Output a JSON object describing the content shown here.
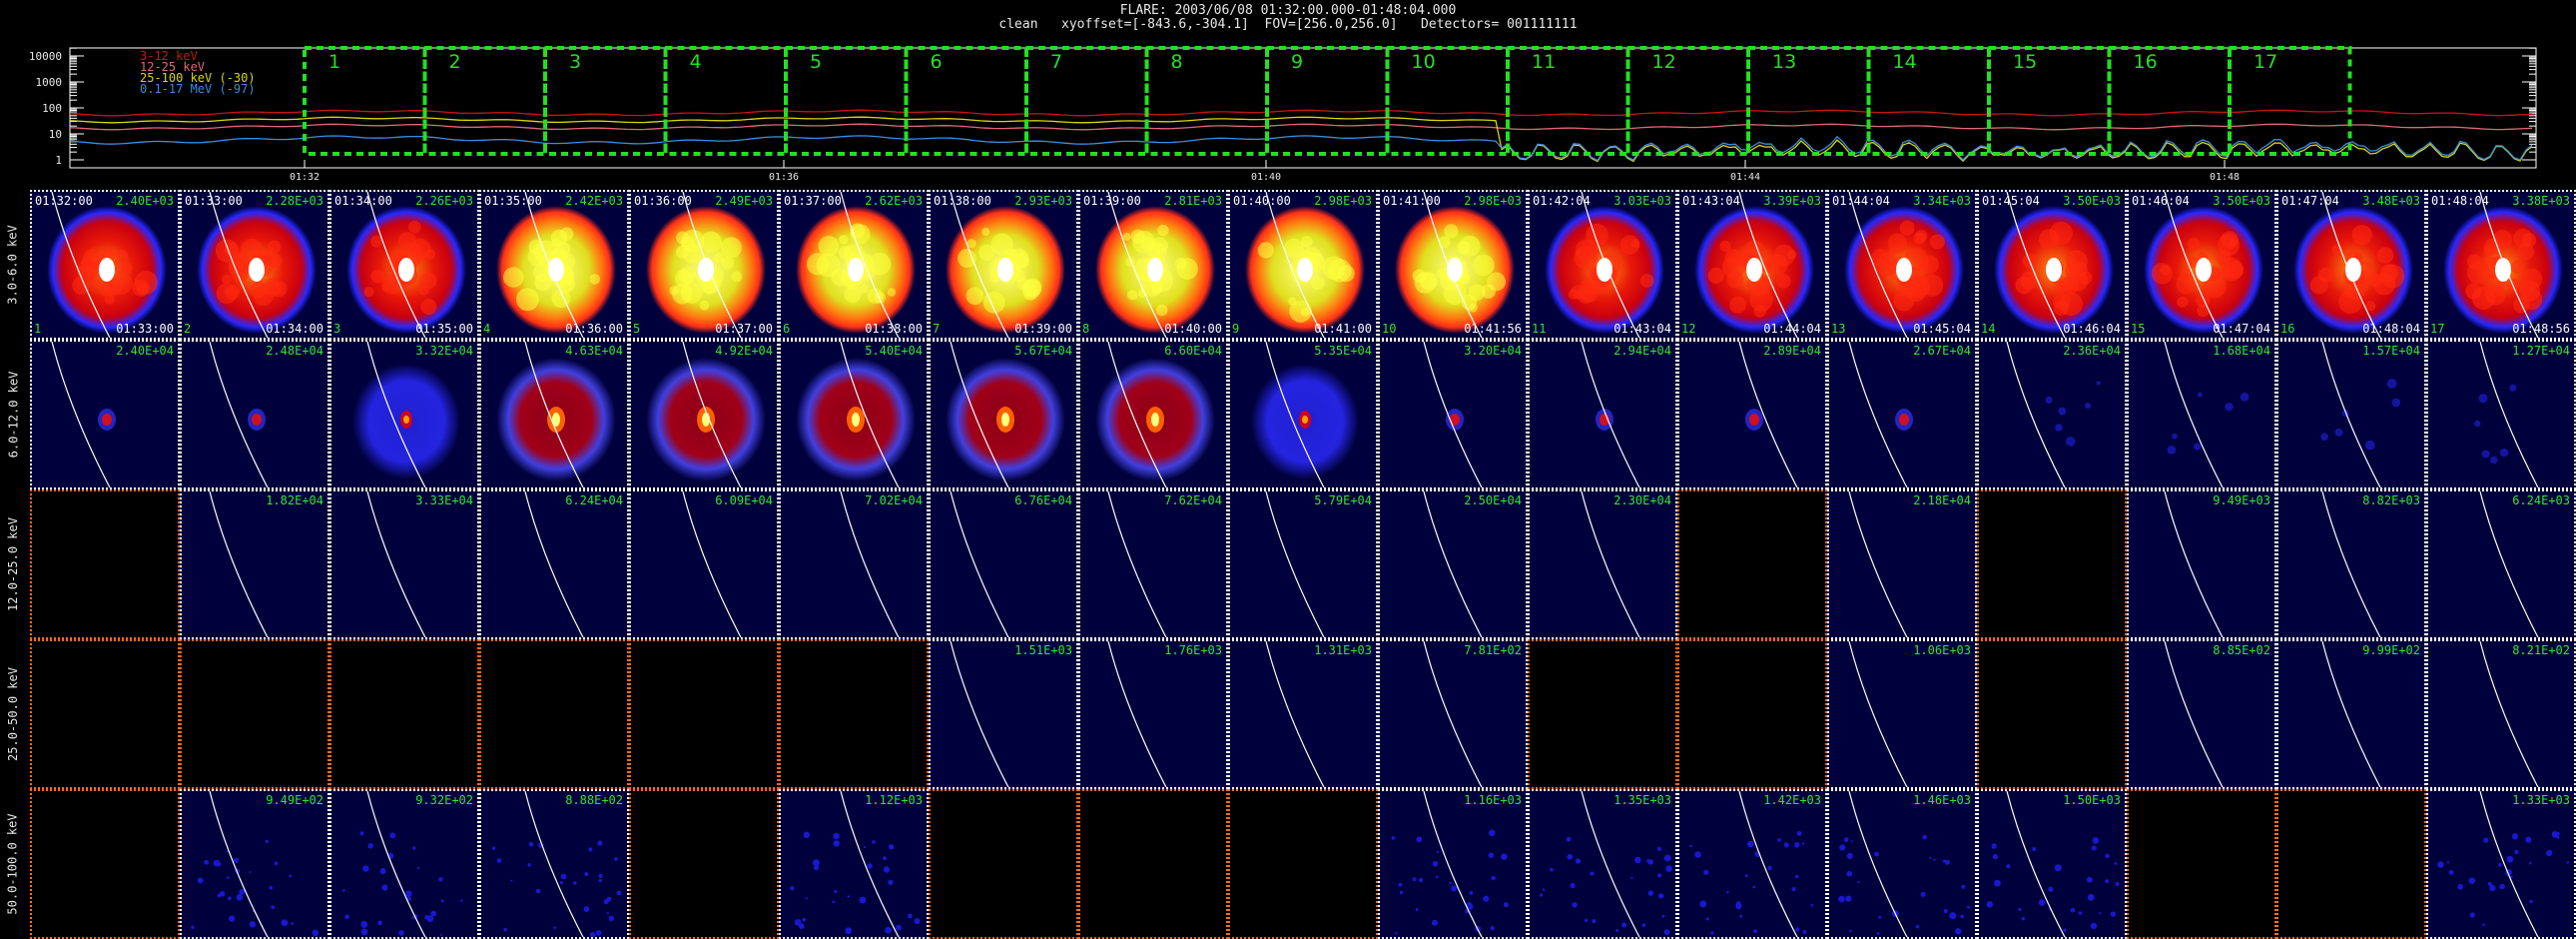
{
  "header": {
    "title": "FLARE: 2003/06/08 01:32:00.000-01:48:04.000",
    "subtitle": "clean   xyoffset=[-843.6,-304.1]  FOV=[256.0,256.0]   Detectors= 001111111"
  },
  "lightcurve": {
    "legend": [
      {
        "label": "3-12 keV",
        "color": "#c81414"
      },
      {
        "label": "12-25 keV",
        "color": "#e06878"
      },
      {
        "label": "25-100 keV (-30)",
        "color": "#d8d800"
      },
      {
        "label": "0.1-17 MeV (-97)",
        "color": "#3c8ce0"
      }
    ],
    "y_ticks": [
      "10000",
      "1000",
      "100",
      "10",
      "1"
    ],
    "x_ticks": [
      "01:32",
      "01:36",
      "01:40",
      "01:44",
      "01:48"
    ],
    "intervals": [
      "1",
      "2",
      "3",
      "4",
      "5",
      "6",
      "7",
      "8",
      "9",
      "10",
      "11",
      "12",
      "13",
      "14",
      "15",
      "16",
      "17"
    ],
    "interval_color": "#22e022"
  },
  "grid": {
    "row_labels": [
      "3.0-6.0 keV",
      "6.0-12.0 keV",
      "12.0-25.0 keV",
      "25.0-50.0 keV",
      "50.0-100.0 keV"
    ],
    "start_times": [
      "01:32:00",
      "01:33:00",
      "01:34:00",
      "01:35:00",
      "01:36:00",
      "01:37:00",
      "01:38:00",
      "01:39:00",
      "01:40:00",
      "01:41:00",
      "01:42:04",
      "01:43:04",
      "01:44:04",
      "01:45:04",
      "01:46:04",
      "01:47:04",
      "01:48:04"
    ],
    "end_times": [
      "01:33:00",
      "01:34:00",
      "01:35:00",
      "01:36:00",
      "01:37:00",
      "01:38:00",
      "01:39:00",
      "01:40:00",
      "01:41:00",
      "01:41:56",
      "01:43:04",
      "01:44:04",
      "01:45:04",
      "01:46:04",
      "01:47:04",
      "01:48:04",
      "01:48:56"
    ],
    "indices": [
      "1",
      "2",
      "3",
      "4",
      "5",
      "6",
      "7",
      "8",
      "9",
      "10",
      "11",
      "12",
      "13",
      "14",
      "15",
      "16",
      "17"
    ],
    "max_values": [
      [
        "2.40E+03",
        "2.28E+03",
        "2.26E+03",
        "2.42E+03",
        "2.49E+03",
        "2.62E+03",
        "2.93E+03",
        "2.81E+03",
        "2.98E+03",
        "2.98E+03",
        "3.03E+03",
        "3.39E+03",
        "3.34E+03",
        "3.50E+03",
        "3.50E+03",
        "3.48E+03",
        "3.38E+03"
      ],
      [
        "2.40E+04",
        "2.48E+04",
        "3.32E+04",
        "4.63E+04",
        "4.92E+04",
        "5.40E+04",
        "5.67E+04",
        "6.60E+04",
        "5.35E+04",
        "3.20E+04",
        "2.94E+04",
        "2.89E+04",
        "2.67E+04",
        "2.36E+04",
        "1.68E+04",
        "1.57E+04",
        "1.27E+04"
      ],
      [
        "",
        "1.82E+04",
        "3.33E+04",
        "6.24E+04",
        "6.09E+04",
        "7.02E+04",
        "6.76E+04",
        "7.62E+04",
        "5.79E+04",
        "2.50E+04",
        "2.30E+04",
        "",
        "2.18E+04",
        "",
        "9.49E+03",
        "8.82E+03",
        "6.24E+03"
      ],
      [
        "",
        "",
        "",
        "",
        "",
        "",
        "1.51E+03",
        "1.76E+03",
        "1.31E+03",
        "7.81E+02",
        "",
        "",
        "1.06E+03",
        "",
        "8.85E+02",
        "9.99E+02",
        "8.21E+02"
      ],
      [
        "",
        "9.49E+02",
        "9.32E+02",
        "8.88E+02",
        "",
        "1.12E+03",
        "",
        "",
        "",
        "1.16E+03",
        "1.35E+03",
        "1.42E+03",
        "1.46E+03",
        "1.50E+03",
        "",
        "",
        "1.33E+03"
      ]
    ],
    "image_types": [
      [
        "warm-ring",
        "warm-ring",
        "warm-ring",
        "warm-bright",
        "warm-bright",
        "warm-bright",
        "warm-bright",
        "warm-bright",
        "warm-bright",
        "warm-bright",
        "warm-ring",
        "warm-ring",
        "warm-ring",
        "warm-ring",
        "warm-ring",
        "warm-ring",
        "warm-ring"
      ],
      [
        "dot",
        "dot",
        "blue-ring",
        "red-ring",
        "red-ring",
        "red-ring",
        "red-ring",
        "red-ring",
        "blue-ring",
        "dot",
        "dot",
        "dot",
        "dot",
        "faint",
        "faint",
        "faint",
        "faint"
      ],
      [
        "empty",
        "blank",
        "blank",
        "blank",
        "blank",
        "blank",
        "blank",
        "blank",
        "blank",
        "blank",
        "blank",
        "empty",
        "blank",
        "empty",
        "blank",
        "blank",
        "blank"
      ],
      [
        "empty",
        "empty",
        "empty",
        "empty",
        "empty",
        "empty",
        "blank",
        "blank",
        "blank",
        "blank",
        "empty",
        "empty",
        "blank",
        "empty",
        "blank",
        "blank",
        "blank"
      ],
      [
        "empty",
        "speckle",
        "speckle",
        "speckle",
        "empty",
        "speckle",
        "empty",
        "empty",
        "empty",
        "speckle",
        "speckle",
        "speckle",
        "speckle",
        "speckle",
        "empty",
        "empty",
        "speckle"
      ]
    ]
  }
}
